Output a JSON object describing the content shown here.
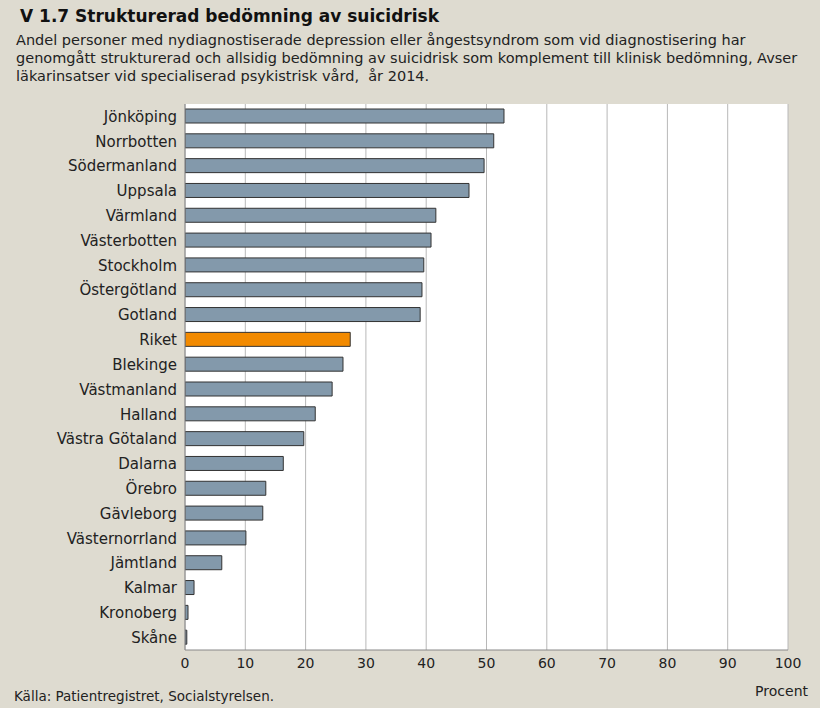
{
  "chart_data": {
    "type": "bar",
    "orientation": "horizontal",
    "title": "V 1.7 Strukturerad bedömning av suicidrisk",
    "subtitle": "Andel personer med nydiagnostiserade depression eller ångestsyndrom som vid diagnostisering har genomgått strukturerad och allsidig bedömning av suicidrisk som komplement till klinisk bedömning, Avser  läkarinsatser vid specialiserad psykistrisk vård,  år 2014.",
    "x_label": "Procent",
    "annotations": [
      "Källa: Patientregistret, Socialstyrelsen."
    ],
    "categories": [
      "Jönköping",
      "Norrbotten",
      "Södermanland",
      "Uppsala",
      "Värmland",
      "Västerbotten",
      "Stockholm",
      "Östergötland",
      "Gotland",
      "Riket",
      "Blekinge",
      "Västmanland",
      "Halland",
      "Västra Götaland",
      "Dalarna",
      "Örebro",
      "Gävleborg",
      "Västernorrland",
      "Jämtland",
      "Kalmar",
      "Kronoberg",
      "Skåne"
    ],
    "values": [
      52.9,
      51.2,
      49.6,
      47.1,
      41.6,
      40.8,
      39.6,
      39.3,
      39.0,
      27.4,
      26.2,
      24.4,
      21.6,
      19.7,
      16.3,
      13.4,
      12.9,
      10.1,
      6.1,
      1.5,
      0.5,
      0.3
    ],
    "colors": [
      "#8399ab",
      "#8399ab",
      "#8399ab",
      "#8399ab",
      "#8399ab",
      "#8399ab",
      "#8399ab",
      "#8399ab",
      "#8399ab",
      "#f28a00",
      "#8399ab",
      "#8399ab",
      "#8399ab",
      "#8399ab",
      "#8399ab",
      "#8399ab",
      "#8399ab",
      "#8399ab",
      "#8399ab",
      "#8399ab",
      "#8399ab",
      "#8399ab"
    ],
    "xlim": [
      0,
      100
    ],
    "xticks": [
      0,
      10,
      20,
      30,
      40,
      50,
      60,
      70,
      80,
      90,
      100
    ],
    "grid": true
  }
}
